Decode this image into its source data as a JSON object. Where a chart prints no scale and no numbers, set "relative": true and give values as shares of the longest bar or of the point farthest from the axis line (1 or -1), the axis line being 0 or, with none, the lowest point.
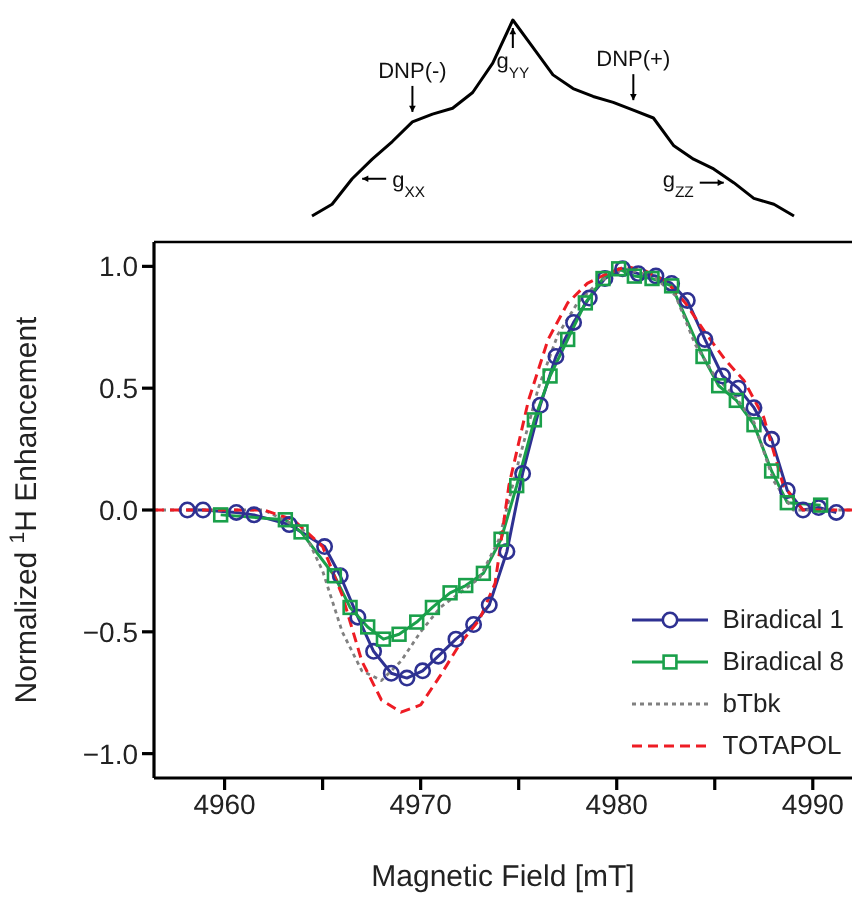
{
  "chart_data": [
    {
      "type": "line",
      "relative": true,
      "annotations": [
        "g$_{XX}$",
        "DNP(-)",
        "g$_{YY}$",
        "DNP(+)",
        "g$_{ZZ}$"
      ],
      "categories": [
        null,
        null,
        null,
        null,
        null,
        null,
        null,
        null,
        null,
        null,
        null,
        null,
        null,
        null,
        null,
        null,
        null,
        null,
        null,
        null,
        null,
        null,
        null,
        null,
        null
      ],
      "series": [
        {
          "color": "#000000",
          "values": [
            0,
            0.06,
            0.19,
            0.29,
            0.38,
            0.48,
            0.52,
            0.55,
            0.63,
            0.78,
            1.0,
            0.86,
            0.72,
            0.65,
            0.61,
            0.58,
            0.54,
            0.5,
            0.36,
            0.29,
            0.24,
            0.17,
            0.09,
            0.06,
            0
          ]
        }
      ]
    },
    {
      "type": "line",
      "xlabel": "Magnetic Field [mT]",
      "ylabel": "Normalized $^{1}$H Enhancement",
      "xlim": [
        4956.4,
        4992
      ],
      "ylim": [
        -1.1,
        1.1
      ],
      "xticks": [
        4960,
        {
          "value": 4965,
          "label": null
        },
        4970,
        {
          "value": 4975,
          "label": null
        },
        4980,
        {
          "value": 4985,
          "label": null
        },
        4990
      ],
      "yticks": [
        {
          "value": -1,
          "label": "−1.0"
        },
        {
          "value": -0.5,
          "label": "−0.5"
        },
        {
          "value": 0,
          "label": "0.0"
        },
        {
          "value": 0.5,
          "label": "0.5"
        },
        {
          "value": 1,
          "label": "1.0"
        }
      ],
      "legend": "bottom right",
      "series": [
        {
          "name": "Biradical 1",
          "color": "#2e3192",
          "marker": "circle",
          "line_style": "solid",
          "x": [
            4958.1,
            4958.9,
            4960.6,
            4961.5,
            4963.3,
            4965.1,
            4965.9,
            4966.8,
            4967.6,
            4968.5,
            4969.3,
            4970.1,
            4970.9,
            4971.8,
            4972.7,
            4973.5,
            4974.4,
            4975.2,
            4976.1,
            4976.9,
            4977.8,
            4978.6,
            4979.4,
            4980.3,
            4981.1,
            4982.0,
            4982.8,
            4983.6,
            4984.5,
            4985.4,
            4986.2,
            4987.0,
            4987.9,
            4988.7,
            4989.5,
            4990.3,
            4991.2
          ],
          "values": [
            0,
            0,
            -0.01,
            -0.02,
            -0.06,
            -0.15,
            -0.27,
            -0.44,
            -0.58,
            -0.67,
            -0.69,
            -0.66,
            -0.6,
            -0.53,
            -0.47,
            -0.39,
            -0.17,
            0.15,
            0.43,
            0.63,
            0.77,
            0.87,
            0.95,
            0.99,
            0.97,
            0.96,
            0.93,
            0.86,
            0.7,
            0.55,
            0.5,
            0.42,
            0.29,
            0.08,
            0.0,
            0.01,
            -0.01
          ]
        },
        {
          "name": "Biradical 8",
          "color": "#1aa04a",
          "marker": "square",
          "line_style": "solid",
          "x": [
            4959.8,
            4963.1,
            4963.9,
            4965.6,
            4966.4,
            4967.3,
            4968.1,
            4968.9,
            4969.8,
            4970.6,
            4971.5,
            4972.3,
            4973.2,
            4974.1,
            4974.9,
            4975.8,
            4976.6,
            4977.5,
            4978.4,
            4979.3,
            4980.1,
            4980.9,
            4981.8,
            4982.8,
            4984.4,
            4985.2,
            4986.1,
            4987.0,
            4987.9,
            4988.7,
            4990.4
          ],
          "values": [
            -0.02,
            -0.04,
            -0.09,
            -0.27,
            -0.4,
            -0.48,
            -0.53,
            -0.51,
            -0.46,
            -0.4,
            -0.34,
            -0.31,
            -0.26,
            -0.12,
            0.1,
            0.37,
            0.55,
            0.7,
            0.85,
            0.95,
            0.99,
            0.96,
            0.95,
            0.92,
            0.63,
            0.51,
            0.45,
            0.35,
            0.16,
            0.03,
            0.02
          ]
        },
        {
          "name": "bTbk",
          "color": "#808080",
          "marker": "none",
          "line_style": "dotted",
          "x": [
            4956.4,
            4962,
            4964,
            4965,
            4966,
            4967,
            4968,
            4969,
            4970,
            4971,
            4972,
            4973,
            4974,
            4975,
            4976,
            4977,
            4978,
            4979,
            4980,
            4981,
            4982,
            4983,
            4984,
            4985,
            4986,
            4987,
            4988,
            4989,
            4992
          ],
          "values": [
            0,
            0,
            -0.08,
            -0.25,
            -0.5,
            -0.66,
            -0.7,
            -0.62,
            -0.5,
            -0.4,
            -0.34,
            -0.28,
            -0.12,
            0.2,
            0.5,
            0.72,
            0.85,
            0.93,
            0.98,
            0.98,
            0.95,
            0.88,
            0.68,
            0.55,
            0.47,
            0.36,
            0.12,
            0.0,
            0
          ]
        },
        {
          "name": "TOTAPOL",
          "color": "#ee1c24",
          "marker": "none",
          "line_style": "dashed",
          "x": [
            4956.4,
            4962,
            4963.5,
            4965,
            4966,
            4967,
            4968,
            4969,
            4970,
            4971,
            4972,
            4973,
            4973.8,
            4974.5,
            4975.5,
            4976.5,
            4977.5,
            4978.5,
            4979.5,
            4980.5,
            4981.5,
            4982.5,
            4983.5,
            4984.5,
            4985.5,
            4986.5,
            4987.5,
            4988.5,
            4989.5,
            4992
          ],
          "values": [
            0,
            0,
            -0.04,
            -0.15,
            -0.35,
            -0.62,
            -0.78,
            -0.83,
            -0.8,
            -0.68,
            -0.55,
            -0.45,
            -0.3,
            0.1,
            0.45,
            0.7,
            0.85,
            0.93,
            0.97,
            1.0,
            0.98,
            0.94,
            0.85,
            0.73,
            0.62,
            0.53,
            0.38,
            0.1,
            0.0,
            0
          ]
        }
      ]
    }
  ]
}
